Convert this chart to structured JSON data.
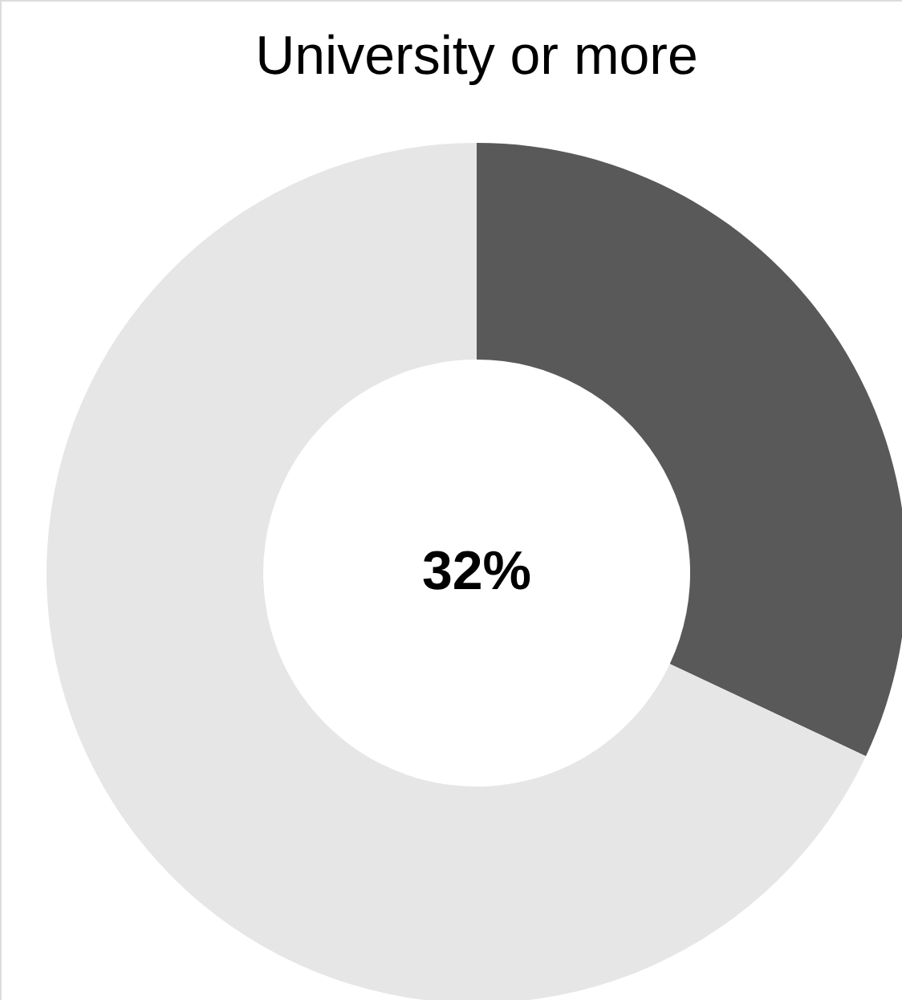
{
  "chart_data": {
    "type": "donut",
    "title": "University or more",
    "categories": [
      null,
      null
    ],
    "values": [
      32,
      68
    ],
    "colors": [
      "#595959",
      "#e6e6e7"
    ],
    "annotations": [
      "32%"
    ]
  }
}
